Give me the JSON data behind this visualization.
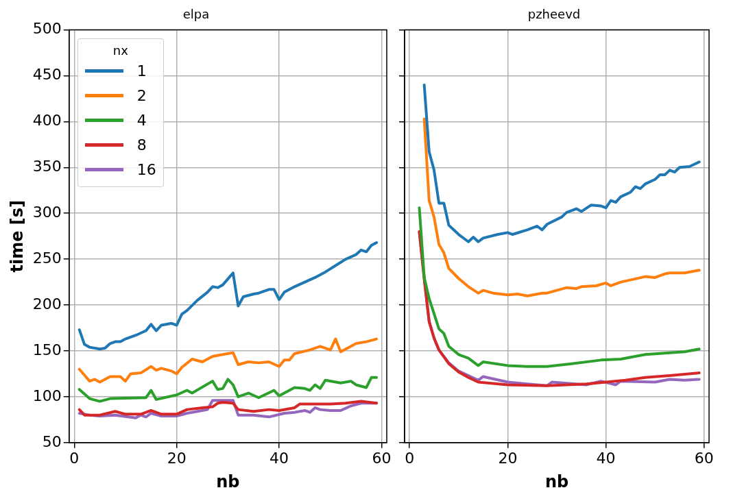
{
  "chart_data": [
    {
      "type": "line",
      "title": "elpa",
      "xlabel": "nb",
      "ylabel": "time [s]",
      "legend_title": "nx",
      "legend": "top left",
      "grid": true,
      "line_style": "solid",
      "xlim": [
        -1,
        61
      ],
      "xticks": [
        0,
        20,
        40,
        60
      ],
      "ylim": [
        50,
        500
      ],
      "yticks": [
        50,
        100,
        150,
        200,
        250,
        300,
        350,
        400,
        450,
        500
      ],
      "series": [
        {
          "name": "1",
          "color": "#1f77b4",
          "x": [
            1,
            2,
            3,
            5,
            6,
            7,
            8,
            9,
            10,
            12,
            14,
            15,
            16,
            17,
            19,
            20,
            21,
            22,
            24,
            26,
            27,
            28,
            29,
            31,
            32,
            33,
            35,
            36,
            38,
            39,
            40,
            41,
            43,
            45,
            47,
            49,
            51,
            53,
            55,
            56,
            57,
            58,
            59
          ],
          "values": [
            173,
            157,
            154,
            152,
            153,
            158,
            160,
            160,
            163,
            167,
            172,
            179,
            172,
            178,
            180,
            178,
            190,
            194,
            205,
            214,
            220,
            219,
            222,
            235,
            199,
            209,
            212,
            213,
            217,
            217,
            206,
            214,
            220,
            225,
            230,
            236,
            243,
            250,
            255,
            260,
            258,
            265,
            268
          ]
        },
        {
          "name": "2",
          "color": "#ff7f0e",
          "x": [
            1,
            3,
            4,
            5,
            7,
            9,
            10,
            11,
            13,
            15,
            16,
            17,
            19,
            20,
            21,
            23,
            25,
            27,
            29,
            31,
            32,
            34,
            36,
            38,
            40,
            41,
            42,
            43,
            46,
            48,
            50,
            51,
            52,
            55,
            57,
            59
          ],
          "values": [
            130,
            117,
            119,
            116,
            122,
            122,
            117,
            125,
            126,
            133,
            129,
            131,
            128,
            125,
            132,
            141,
            138,
            144,
            146,
            148,
            135,
            138,
            137,
            138,
            133,
            140,
            140,
            147,
            151,
            155,
            151,
            163,
            149,
            158,
            160,
            163
          ]
        },
        {
          "name": "4",
          "color": "#2ca02c",
          "x": [
            1,
            3,
            5,
            7,
            14,
            15,
            16,
            20,
            22,
            23,
            27,
            28,
            29,
            30,
            31,
            32,
            34,
            36,
            39,
            40,
            41,
            43,
            45,
            46,
            47,
            48,
            49,
            52,
            54,
            55,
            57,
            58,
            59
          ],
          "values": [
            108,
            98,
            95,
            98,
            99,
            107,
            97,
            102,
            107,
            104,
            117,
            108,
            109,
            119,
            113,
            100,
            104,
            99,
            107,
            101,
            104,
            110,
            109,
            107,
            113,
            109,
            118,
            115,
            117,
            113,
            110,
            121,
            121
          ]
        },
        {
          "name": "8",
          "color": "#d62728",
          "x": [
            1,
            2,
            5,
            8,
            10,
            13,
            15,
            17,
            20,
            22,
            25,
            27,
            28,
            29,
            31,
            32,
            35,
            38,
            40,
            43,
            44,
            46,
            50,
            53,
            56,
            59
          ],
          "values": [
            86,
            80,
            80,
            84,
            81,
            81,
            85,
            81,
            81,
            86,
            88,
            89,
            93,
            94,
            93,
            86,
            84,
            86,
            85,
            88,
            92,
            92,
            92,
            93,
            95,
            93
          ]
        },
        {
          "name": "16",
          "color": "#9467bd",
          "x": [
            1,
            3,
            5,
            8,
            12,
            13,
            14,
            15,
            17,
            20,
            22,
            25,
            26,
            27,
            31,
            32,
            35,
            38,
            41,
            43,
            45,
            46,
            47,
            48,
            50,
            52,
            54,
            56,
            59
          ],
          "values": [
            82,
            80,
            79,
            80,
            77,
            80,
            78,
            82,
            79,
            79,
            82,
            85,
            86,
            96,
            96,
            80,
            80,
            78,
            82,
            83,
            85,
            83,
            88,
            86,
            85,
            85,
            90,
            93,
            93
          ]
        }
      ]
    },
    {
      "type": "line",
      "title": "pzheevd",
      "xlabel": "nb",
      "tick_labels": "x",
      "grid": true,
      "line_style": "solid",
      "xlim": [
        -1,
        61
      ],
      "xticks": [
        0,
        20,
        40,
        60
      ],
      "ylim": [
        50,
        500
      ],
      "yticks": [
        50,
        100,
        150,
        200,
        250,
        300,
        350,
        400,
        450,
        500
      ],
      "series": [
        {
          "name": "1",
          "color": "#1f77b4",
          "x": [
            3,
            4,
            5,
            6,
            7,
            8,
            9,
            10,
            12,
            13,
            14,
            15,
            18,
            20,
            21,
            24,
            26,
            27,
            28,
            31,
            32,
            34,
            35,
            37,
            39,
            40,
            41,
            42,
            43,
            45,
            46,
            47,
            48,
            50,
            51,
            52,
            53,
            54,
            55,
            57,
            59
          ],
          "values": [
            440,
            367,
            347,
            311,
            311,
            287,
            282,
            277,
            269,
            274,
            269,
            273,
            277,
            279,
            277,
            282,
            286,
            282,
            288,
            296,
            301,
            305,
            302,
            309,
            308,
            306,
            314,
            312,
            318,
            323,
            329,
            327,
            332,
            337,
            342,
            342,
            347,
            345,
            350,
            351,
            356
          ]
        },
        {
          "name": "2",
          "color": "#ff7f0e",
          "x": [
            3,
            4,
            5,
            6,
            7,
            8,
            10,
            12,
            14,
            15,
            17,
            20,
            22,
            24,
            27,
            28,
            32,
            34,
            35,
            38,
            40,
            41,
            43,
            48,
            50,
            52,
            53,
            56,
            59
          ],
          "values": [
            403,
            314,
            296,
            266,
            257,
            240,
            229,
            220,
            213,
            216,
            213,
            211,
            212,
            210,
            213,
            213,
            219,
            218,
            220,
            221,
            224,
            221,
            225,
            231,
            230,
            234,
            235,
            235,
            238
          ]
        },
        {
          "name": "4",
          "color": "#2ca02c",
          "x": [
            2,
            3,
            4,
            6,
            7,
            8,
            10,
            12,
            14,
            15,
            20,
            24,
            28,
            33,
            39,
            43,
            48,
            53,
            56,
            59
          ],
          "values": [
            306,
            230,
            207,
            174,
            169,
            155,
            146,
            142,
            134,
            138,
            134,
            133,
            133,
            136,
            140,
            141,
            146,
            148,
            149,
            152
          ]
        },
        {
          "name": "8",
          "color": "#d62728",
          "x": [
            2,
            3,
            4,
            5,
            6,
            8,
            10,
            12,
            14,
            20,
            28,
            36,
            40,
            44,
            48,
            53,
            59
          ],
          "values": [
            280,
            228,
            182,
            164,
            151,
            136,
            127,
            121,
            116,
            113,
            112,
            114,
            116,
            118,
            121,
            123,
            126
          ]
        },
        {
          "name": "16",
          "color": "#9467bd",
          "x": [
            2,
            3,
            4,
            5,
            6,
            8,
            10,
            12,
            14,
            15,
            20,
            24,
            28,
            29,
            36,
            39,
            42,
            43,
            50,
            53,
            56,
            59
          ],
          "values": [
            280,
            230,
            182,
            164,
            151,
            137,
            128,
            123,
            118,
            122,
            116,
            114,
            112,
            116,
            113,
            117,
            113,
            117,
            116,
            119,
            118,
            119
          ]
        }
      ]
    }
  ]
}
